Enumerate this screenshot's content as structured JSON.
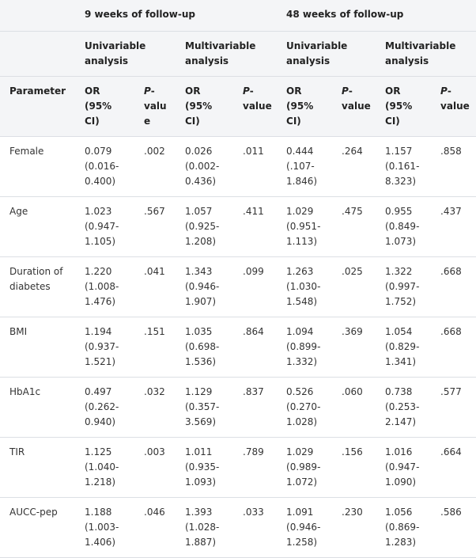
{
  "table": {
    "group_headers": [
      "9 weeks of follow-up",
      "48 weeks of follow-up"
    ],
    "analysis_headers": [
      "Univariable analysis",
      "Multivariable analysis",
      "Univariable analysis",
      "Multivariable analysis"
    ],
    "column_headers": [
      "Parameter",
      "OR (95% CI)",
      "P-value",
      "OR (95% CI)",
      "P-value",
      "OR (95% CI)",
      "P-value",
      "OR (95% CI)",
      "P-value"
    ],
    "rows": [
      [
        "Female",
        "0.079 (0.016-0.400)",
        ".002",
        "0.026 (0.002-0.436)",
        ".011",
        "0.444 (.107-1.846)",
        ".264",
        "1.157 (0.161-8.323)",
        ".858"
      ],
      [
        "Age",
        "1.023 (0.947-1.105)",
        ".567",
        "1.057 (0.925-1.208)",
        ".411",
        "1.029 (0.951-1.113)",
        ".475",
        "0.955 (0.849-1.073)",
        ".437"
      ],
      [
        "Duration of diabetes",
        "1.220 (1.008-1.476)",
        ".041",
        "1.343 (0.946-1.907)",
        ".099",
        "1.263 (1.030-1.548)",
        ".025",
        "1.322 (0.997-1.752)",
        ".668"
      ],
      [
        "BMI",
        "1.194 (0.937-1.521)",
        ".151",
        "1.035 (0.698-1.536)",
        ".864",
        "1.094 (0.899-1.332)",
        ".369",
        "1.054 (0.829-1.341)",
        ".668"
      ],
      [
        "HbA1c",
        "0.497 (0.262-0.940)",
        ".032",
        "1.129 (0.357-3.569)",
        ".837",
        "0.526 (0.270-1.028)",
        ".060",
        "0.738 (0.253-2.147)",
        ".577"
      ],
      [
        "TIR",
        "1.125 (1.040-1.218)",
        ".003",
        "1.011 (0.935-1.093)",
        ".789",
        "1.029 (0.989-1.072)",
        ".156",
        "1.016 (0.947-1.090)",
        ".664"
      ],
      [
        "AUCC-pep",
        "1.188 (1.003-1.406)",
        ".046",
        "1.393 (1.028-1.887)",
        ".033",
        "1.091 (0.946-1.258)",
        ".230",
        "1.056 (0.869-1.283)",
        ".586"
      ]
    ]
  }
}
